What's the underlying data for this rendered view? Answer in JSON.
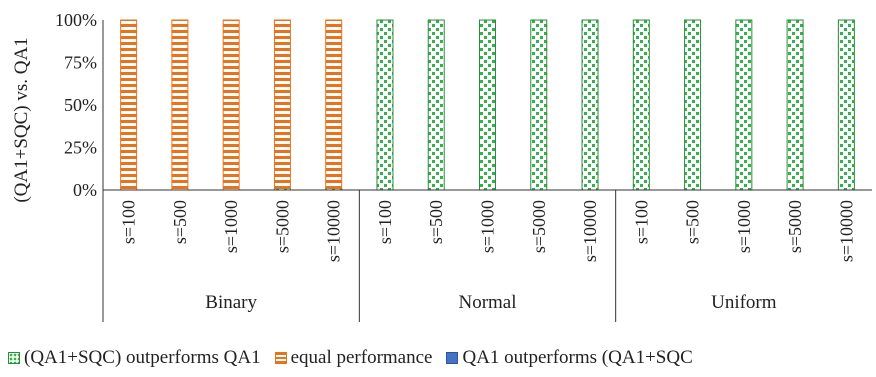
{
  "chart_data": {
    "type": "bar",
    "stacked": true,
    "ylabel": "(QA1+SQC) vs. QA1",
    "yticks": [
      "0%",
      "25%",
      "50%",
      "75%",
      "100%"
    ],
    "ylim": [
      0,
      100
    ],
    "groups": [
      {
        "name": "Binary",
        "categories": [
          "s=100",
          "s=500",
          "s=1000",
          "s=5000",
          "s=10000"
        ]
      },
      {
        "name": "Normal",
        "categories": [
          "s=100",
          "s=500",
          "s=1000",
          "s=5000",
          "s=10000"
        ]
      },
      {
        "name": "Uniform",
        "categories": [
          "s=100",
          "s=500",
          "s=1000",
          "s=5000",
          "s=10000"
        ]
      }
    ],
    "series": [
      {
        "name": "(QA1+SQC) outperforms QA1",
        "color": "#2fb34a",
        "values": [
          0,
          0,
          0,
          1,
          1,
          100,
          100,
          100,
          100,
          100,
          100,
          100,
          100,
          100,
          100
        ]
      },
      {
        "name": "equal performance",
        "color": "#e8731f",
        "values": [
          100,
          100,
          100,
          99,
          99,
          0,
          0,
          0,
          0,
          0,
          0,
          0,
          0,
          0,
          0
        ]
      },
      {
        "name": "QA1 outperforms (QA1+SQC",
        "color": "#4472c4",
        "values": [
          0,
          0,
          0,
          0,
          0,
          0,
          0,
          0,
          0,
          0,
          0,
          0,
          0,
          0,
          0
        ]
      }
    ],
    "grid": false,
    "legend_position": "bottom"
  }
}
